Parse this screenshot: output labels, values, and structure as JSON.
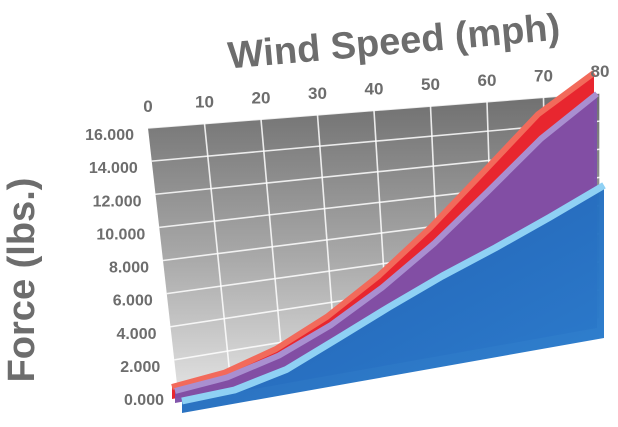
{
  "chart_data": {
    "type": "area",
    "title": "Wind Speed (mph)",
    "xlabel": "Wind Speed (mph)",
    "ylabel": "Force (lbs.)",
    "x": [
      0,
      10,
      20,
      30,
      40,
      50,
      60,
      70,
      80
    ],
    "x_tick_labels": [
      "0",
      "10",
      "20",
      "30",
      "40",
      "50",
      "60",
      "70",
      "80"
    ],
    "y_tick_labels": [
      "0.000",
      "2.000",
      "4.000",
      "6.000",
      "8.000",
      "10.000",
      "12.000",
      "14.000",
      "16.000"
    ],
    "xlim": [
      0,
      80
    ],
    "ylim": [
      0,
      16000
    ],
    "grid": true,
    "legend": "none",
    "series": [
      {
        "values": [
          0,
          300,
          1200,
          2700,
          4800,
          7500,
          10800,
          14400,
          17000
        ],
        "color": "#e8262f",
        "edge_color": "#f26a5b"
      },
      {
        "values": [
          0,
          260,
          1050,
          2400,
          4300,
          6700,
          9700,
          13000,
          15800
        ],
        "color": "#7e4fa8",
        "edge_color": "#a98fd0"
      },
      {
        "values": [
          0,
          100,
          800,
          2200,
          3700,
          5200,
          6600,
          8200,
          10000
        ],
        "color": "#2472c3",
        "edge_color": "#8fd1f4"
      }
    ]
  }
}
